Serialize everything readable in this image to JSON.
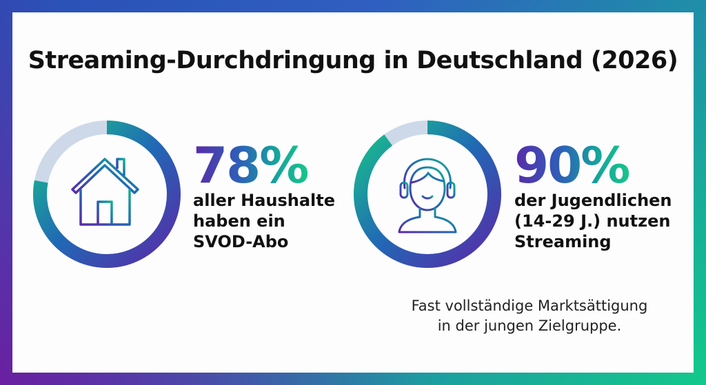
{
  "title": "Streaming-Durchdringung in Deutschland (2026)",
  "stats": [
    {
      "value": "78%",
      "icon": "house-icon",
      "lines": [
        "aller Haushalte",
        "haben ein",
        "SVOD-Abo"
      ]
    },
    {
      "value": "90%",
      "icon": "headset-person-icon",
      "lines": [
        "der Jugendlichen",
        "(14-29 J.) nutzen",
        "Streaming"
      ]
    }
  ],
  "note": [
    "Fast vollständige Marktsättigung",
    "in der jungen Zielgruppe."
  ],
  "colors": {
    "green": "#18c48a",
    "blue": "#2e5fb8",
    "purple": "#5a2aa8",
    "track": "#cdd9e8"
  },
  "chart_data": {
    "type": "pie",
    "title": "Streaming-Durchdringung in Deutschland (2026)",
    "series": [
      {
        "name": "Haushalte mit SVOD-Abo",
        "value": 78,
        "unit": "%"
      },
      {
        "name": "Jugendliche (14-29 J.) nutzen Streaming",
        "value": 90,
        "unit": "%"
      }
    ]
  }
}
